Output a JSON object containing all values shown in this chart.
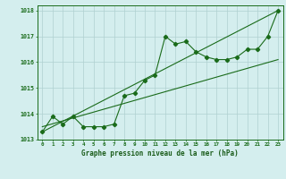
{
  "title": "Graphe pression niveau de la mer (hPa)",
  "x": [
    0,
    1,
    2,
    3,
    4,
    5,
    6,
    7,
    8,
    9,
    10,
    11,
    12,
    13,
    14,
    15,
    16,
    17,
    18,
    19,
    20,
    21,
    22,
    23
  ],
  "line1": [
    1013.3,
    1013.9,
    1013.6,
    1013.9,
    1013.5,
    1013.5,
    1013.5,
    1013.6,
    1014.7,
    1014.8,
    1015.3,
    1015.5,
    1017.0,
    1016.7,
    1016.8,
    1016.4,
    1016.2,
    1016.1,
    1016.1,
    1016.2,
    1016.5,
    1016.5,
    1017.0,
    1018.0
  ],
  "line3_x": [
    0,
    23
  ],
  "line3_y": [
    1013.3,
    1018.0
  ],
  "line4_x": [
    0,
    23
  ],
  "line4_y": [
    1013.5,
    1016.1
  ],
  "ylim": [
    1013.0,
    1018.2
  ],
  "xlim_min": -0.5,
  "xlim_max": 23.5,
  "line_color": "#1a6b1a",
  "bg_color": "#d4eeee",
  "grid_color": "#b0d0d0",
  "tick_color": "#1a6b1a",
  "title_color": "#1a5c1a",
  "yticks": [
    1013,
    1014,
    1015,
    1016,
    1017,
    1018
  ],
  "xticks": [
    0,
    1,
    2,
    3,
    4,
    5,
    6,
    7,
    8,
    9,
    10,
    11,
    12,
    13,
    14,
    15,
    16,
    17,
    18,
    19,
    20,
    21,
    22,
    23
  ]
}
